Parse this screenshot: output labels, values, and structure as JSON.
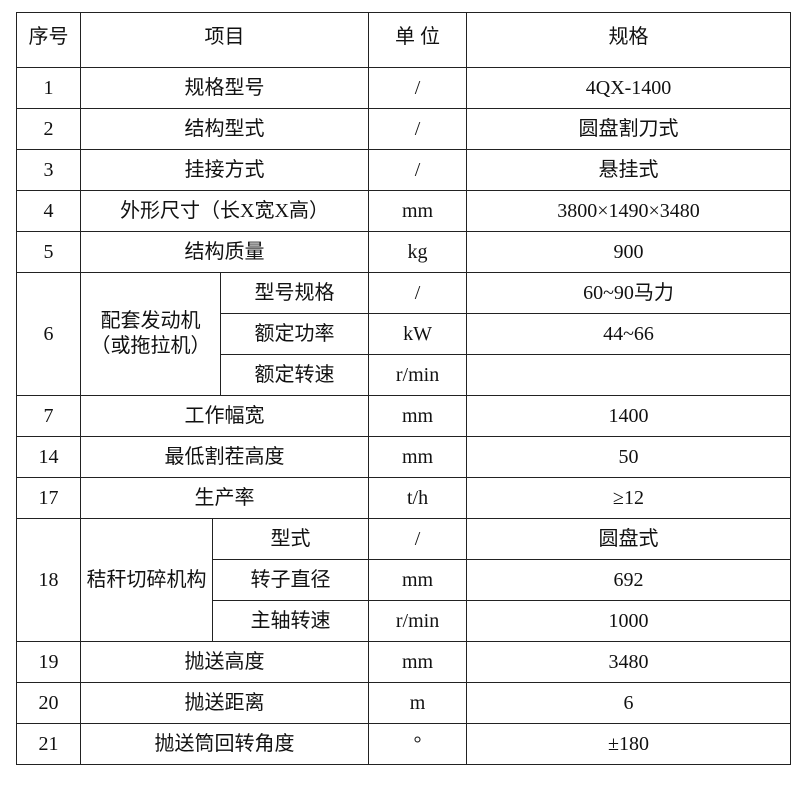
{
  "header": {
    "no": "序号",
    "item": "项目",
    "unit": "单 位",
    "spec": "规格"
  },
  "rows": [
    {
      "no": "1",
      "item": "规格型号",
      "unit": "/",
      "spec": "4QX-1400"
    },
    {
      "no": "2",
      "item": "结构型式",
      "unit": "/",
      "spec": "圆盘割刀式"
    },
    {
      "no": "3",
      "item": "挂接方式",
      "unit": "/",
      "spec": "悬挂式"
    },
    {
      "no": "4",
      "item": "外形尺寸（长X宽X高）",
      "unit": "mm",
      "spec": "3800×1490×3480"
    },
    {
      "no": "5",
      "item": "结构质量",
      "unit": "kg",
      "spec": "900"
    }
  ],
  "engine": {
    "no": "6",
    "group_line1": "配套发动机",
    "group_line2": "（或拖拉机）",
    "subs": [
      {
        "item": "型号规格",
        "unit": "/",
        "spec": "60~90马力"
      },
      {
        "item": "额定功率",
        "unit": "kW",
        "spec": "44~66"
      },
      {
        "item": "额定转速",
        "unit": "r/min",
        "spec": ""
      }
    ]
  },
  "rows2": [
    {
      "no": "7",
      "item": "工作幅宽",
      "unit": "mm",
      "spec": "1400"
    },
    {
      "no": "14",
      "item": "最低割茬高度",
      "unit": "mm",
      "spec": "50"
    },
    {
      "no": "17",
      "item": "生产率",
      "unit": "t/h",
      "spec": "≥12"
    }
  ],
  "chopper": {
    "no": "18",
    "group": "秸秆切碎机构",
    "subs": [
      {
        "item": "型式",
        "unit": "/",
        "spec": "圆盘式"
      },
      {
        "item": "转子直径",
        "unit": "mm",
        "spec": "692"
      },
      {
        "item": "主轴转速",
        "unit": "r/min",
        "spec": "1000"
      }
    ]
  },
  "rows3": [
    {
      "no": "19",
      "item": "抛送高度",
      "unit": "mm",
      "spec": "3480"
    },
    {
      "no": "20",
      "item": "抛送距离",
      "unit": "m",
      "spec": "6"
    },
    {
      "no": "21",
      "item": "抛送筒回转角度",
      "unit": "°",
      "spec": "±180"
    }
  ]
}
